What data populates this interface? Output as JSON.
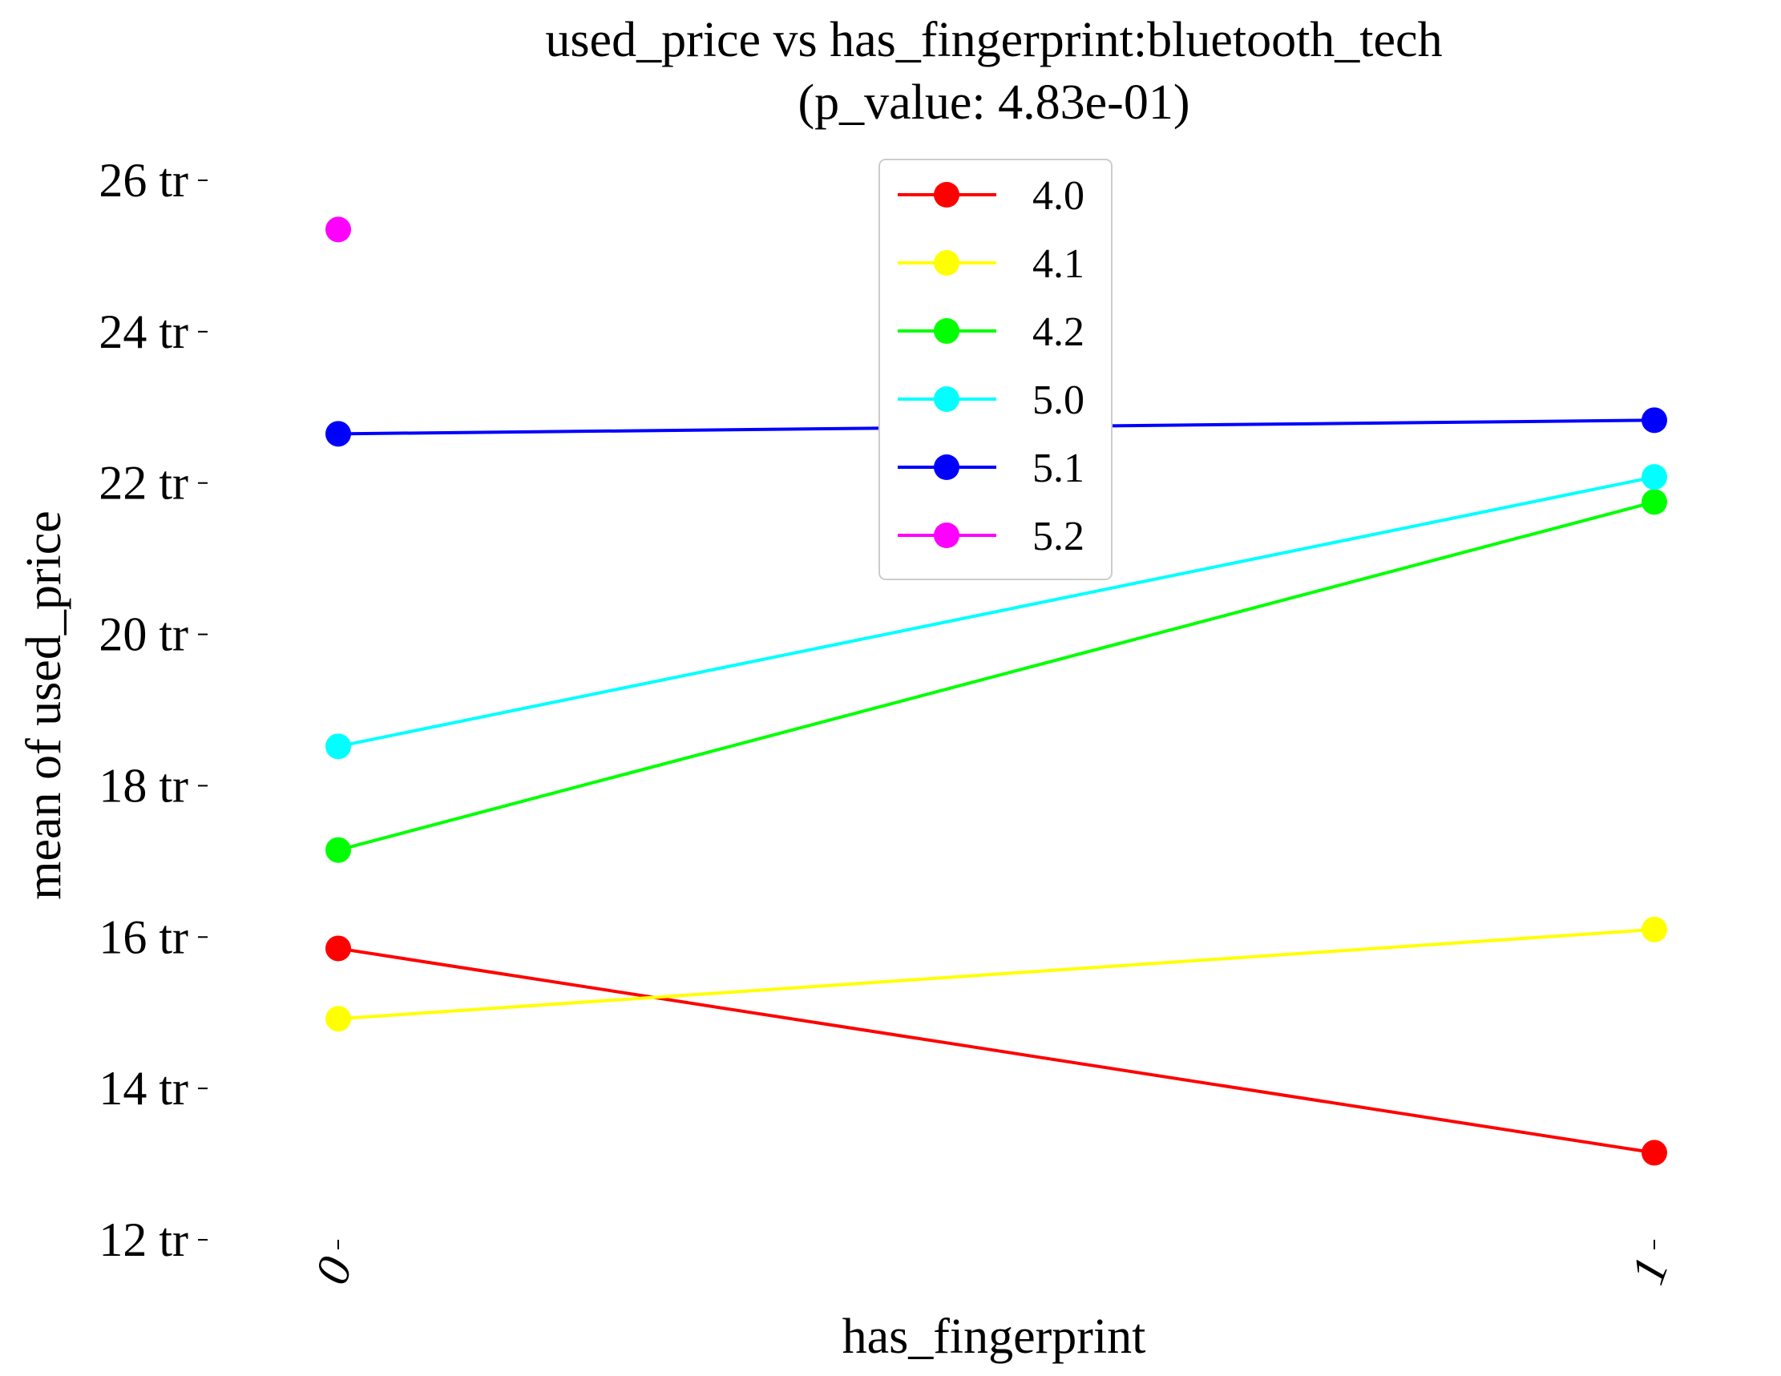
{
  "chart_data": {
    "type": "line",
    "title_line1": "used_price vs has_fingerprint:bluetooth_tech",
    "title_line2": "(p_value: 4.83e-01)",
    "xlabel": "has_fingerprint",
    "ylabel": "mean of used_price",
    "categories": [
      "0",
      "1"
    ],
    "ylim": [
      12,
      26
    ],
    "yticks": [
      {
        "value": 12,
        "label": "12 tr"
      },
      {
        "value": 14,
        "label": "14 tr"
      },
      {
        "value": 16,
        "label": "16 tr"
      },
      {
        "value": 18,
        "label": "18 tr"
      },
      {
        "value": 20,
        "label": "20 tr"
      },
      {
        "value": 22,
        "label": "22 tr"
      },
      {
        "value": 24,
        "label": "24 tr"
      },
      {
        "value": 26,
        "label": "26 tr"
      }
    ],
    "grid": false,
    "legend_placement": "top-center",
    "series": [
      {
        "name": "4.0",
        "color": "#ff0000",
        "values": [
          15.85,
          13.15
        ]
      },
      {
        "name": "4.1",
        "color": "#ffff00",
        "values": [
          14.92,
          16.1
        ]
      },
      {
        "name": "4.2",
        "color": "#00ff00",
        "values": [
          17.15,
          21.75
        ]
      },
      {
        "name": "5.0",
        "color": "#00ffff",
        "values": [
          18.52,
          22.08
        ]
      },
      {
        "name": "5.1",
        "color": "#0000ff",
        "values": [
          22.65,
          22.83
        ]
      },
      {
        "name": "5.2",
        "color": "#ff00ff",
        "values": [
          25.35,
          null
        ]
      }
    ]
  }
}
